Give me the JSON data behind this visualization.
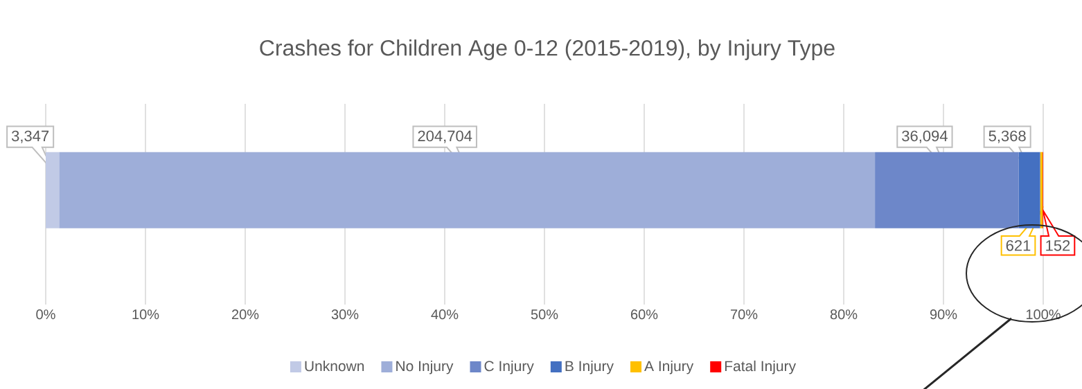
{
  "chart_data": {
    "type": "bar",
    "orientation": "horizontal",
    "stacked": true,
    "title": "Crashes for Children Age 0-12 (2015-2019), by Injury Type",
    "categories": [
      null
    ],
    "series": [
      {
        "name": "Unknown",
        "color": "#c1cae6",
        "values": [
          1.34
        ]
      },
      {
        "name": "No Injury",
        "color": "#9eaed9",
        "values": [
          81.79
        ]
      },
      {
        "name": "C Injury",
        "color": "#6d87c9",
        "values": [
          14.42
        ]
      },
      {
        "name": "B Injury",
        "color": "#4470c1",
        "values": [
          2.14
        ]
      },
      {
        "name": "A Injury",
        "color": "#ffc000",
        "values": [
          0.25
        ]
      },
      {
        "name": "Fatal Injury",
        "color": "#ff0000",
        "values": [
          0.06
        ]
      }
    ],
    "annotations": [
      "3,347",
      "204,704",
      "36,094",
      "5,368",
      "621",
      "152"
    ],
    "xlim": [
      0,
      100
    ],
    "xticks": [
      {
        "value": 0,
        "label": "0%"
      },
      {
        "value": 10,
        "label": "10%"
      },
      {
        "value": 20,
        "label": "20%"
      },
      {
        "value": 30,
        "label": "30%"
      },
      {
        "value": 40,
        "label": "40%"
      },
      {
        "value": 50,
        "label": "50%"
      },
      {
        "value": 60,
        "label": "60%"
      },
      {
        "value": 70,
        "label": "70%"
      },
      {
        "value": 80,
        "label": "80%"
      },
      {
        "value": 90,
        "label": "90%"
      },
      {
        "value": 100,
        "label": "100%"
      }
    ],
    "grid": "x",
    "legend": "bottom"
  }
}
